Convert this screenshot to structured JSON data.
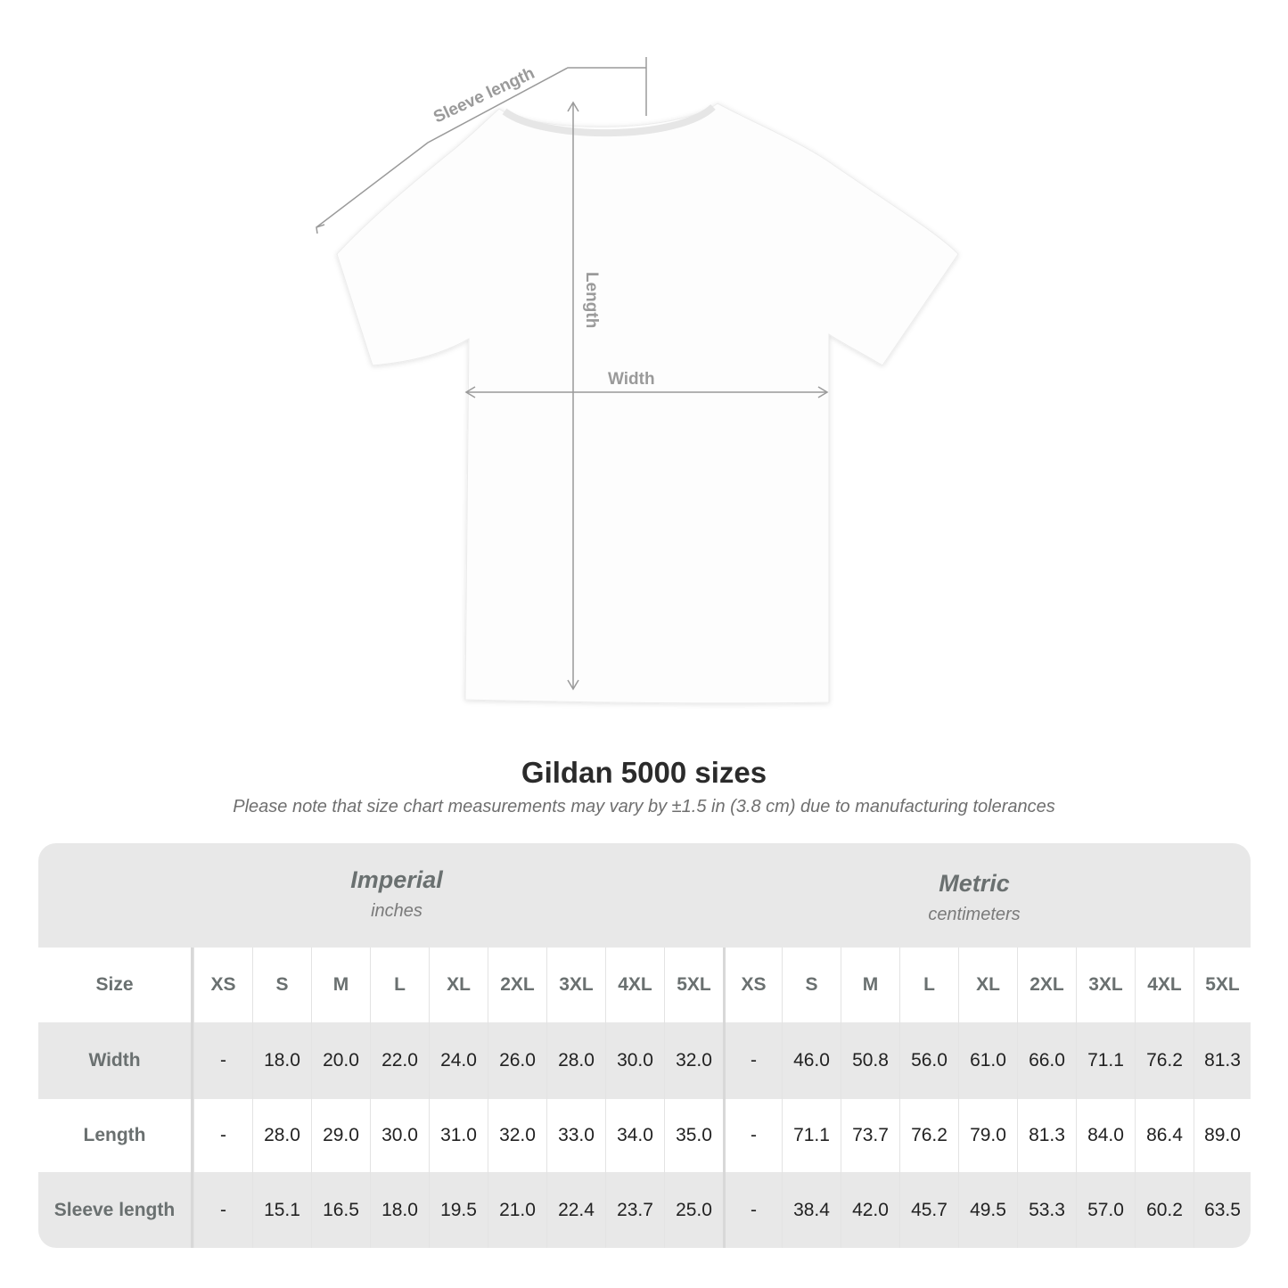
{
  "diagram": {
    "sleeve_label": "Sleeve length",
    "length_label": "Length",
    "width_label": "Width",
    "line_color": "#9a9a9a"
  },
  "title": "Gildan 5000 sizes",
  "note": "Please note that size chart measurements may vary by ±1.5 in (3.8 cm) due to manufacturing tolerances",
  "table": {
    "imperial": {
      "title": "Imperial",
      "unit": "inches"
    },
    "metric": {
      "title": "Metric",
      "unit": "centimeters"
    },
    "size_label": "Size",
    "sizes": [
      "XS",
      "S",
      "M",
      "L",
      "XL",
      "2XL",
      "3XL",
      "4XL",
      "5XL"
    ],
    "rows": [
      {
        "label": "Width",
        "imperial": [
          "-",
          "18.0",
          "20.0",
          "22.0",
          "24.0",
          "26.0",
          "28.0",
          "30.0",
          "32.0"
        ],
        "metric": [
          "-",
          "46.0",
          "50.8",
          "56.0",
          "61.0",
          "66.0",
          "71.1",
          "76.2",
          "81.3"
        ]
      },
      {
        "label": "Length",
        "imperial": [
          "-",
          "28.0",
          "29.0",
          "30.0",
          "31.0",
          "32.0",
          "33.0",
          "34.0",
          "35.0"
        ],
        "metric": [
          "-",
          "71.1",
          "73.7",
          "76.2",
          "79.0",
          "81.3",
          "84.0",
          "86.4",
          "89.0"
        ]
      },
      {
        "label": "Sleeve length",
        "imperial": [
          "-",
          "15.1",
          "16.5",
          "18.0",
          "19.5",
          "21.0",
          "22.4",
          "23.7",
          "25.0"
        ],
        "metric": [
          "-",
          "38.4",
          "42.0",
          "45.7",
          "49.5",
          "53.3",
          "57.0",
          "60.2",
          "63.5"
        ]
      }
    ],
    "band_color": "#e8e8e8"
  }
}
